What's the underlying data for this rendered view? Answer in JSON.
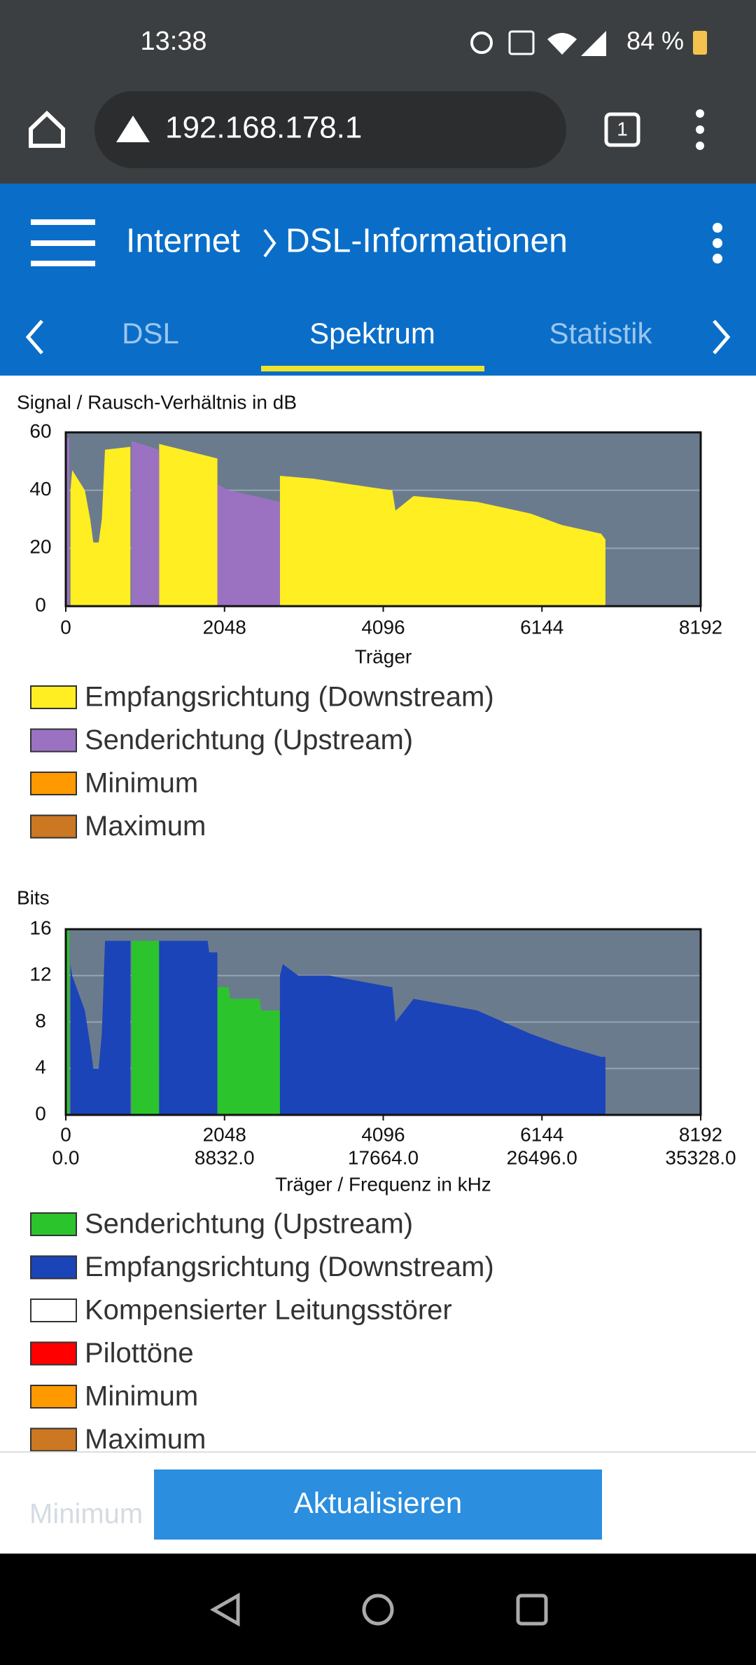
{
  "status_bar": {
    "time": "13:38",
    "battery": "84 %"
  },
  "browser": {
    "url": "192.168.178.1",
    "tab_count": "1"
  },
  "app_bar": {
    "section": "Internet",
    "page": "DSL-Informationen"
  },
  "tabs": [
    "DSL",
    "Spektrum",
    "Statistik"
  ],
  "chart_data": [
    {
      "type": "area",
      "y_label": "Signal / Rausch-Verhältnis in dB",
      "x_label": "Träger",
      "xlim": [
        0,
        8192
      ],
      "xticks": [
        0,
        2048,
        4096,
        6144,
        8192
      ],
      "ylim": [
        0,
        60
      ],
      "yticks": [
        0,
        20,
        40,
        60
      ],
      "grid": true,
      "series": [
        {
          "name": "Empfangsrichtung (Downstream)",
          "color": "#ffee22",
          "x": [
            60,
            82,
            246,
            315,
            355,
            424,
            465,
            506,
            834,
            null,
            1204,
            1956,
            null,
            2763,
            3200,
            3940,
            4213,
            4254,
            4487,
            5308,
            5992,
            6402,
            6908,
            6963
          ],
          "values": [
            40,
            47,
            40,
            30,
            22,
            22,
            30,
            54,
            55,
            null,
            56,
            51,
            null,
            45,
            44,
            41,
            40,
            33,
            38,
            36,
            32,
            28,
            25,
            23
          ]
        },
        {
          "name": "Senderichtung (Upstream)",
          "color": "#9b72c2",
          "x": [
            0,
            45,
            null,
            848,
            1204,
            null,
            1956,
            2100,
            2763
          ],
          "values": [
            58,
            58,
            null,
            57,
            54,
            null,
            42,
            40,
            36
          ]
        },
        {
          "name": "Minimum",
          "color": "#ff9900",
          "x": [],
          "values": []
        },
        {
          "name": "Maximum",
          "color": "#cc7722",
          "x": [],
          "values": []
        }
      ]
    },
    {
      "type": "area",
      "y_label": "Bits",
      "x_label": "Träger / Frequenz in kHz",
      "xlim": [
        0,
        8192
      ],
      "xticks": [
        0,
        2048,
        4096,
        6144,
        8192
      ],
      "x2lim": [
        0,
        35328
      ],
      "x2ticks": [
        {
          "value": 0,
          "label": "0.0"
        },
        {
          "value": 8832,
          "label": "8832.0"
        },
        {
          "value": 17664,
          "label": "17664.0"
        },
        {
          "value": 26496,
          "label": "26496.0"
        },
        {
          "value": 35328,
          "label": "35328.0"
        }
      ],
      "ylim": [
        0,
        16
      ],
      "yticks": [
        0,
        4,
        8,
        12,
        16
      ],
      "grid": true,
      "series": [
        {
          "name": "Senderichtung (Upstream)",
          "color": "#2cc42c",
          "x": [
            0,
            45,
            null,
            848,
            1204,
            null,
            1956,
            2100,
            2120,
            2500,
            2520,
            2763
          ],
          "values": [
            16,
            16,
            null,
            15,
            15,
            null,
            11,
            11,
            10,
            10,
            9,
            9
          ]
        },
        {
          "name": "Empfangsrichtung (Downstream)",
          "color": "#1a44b8",
          "x": [
            60,
            82,
            246,
            315,
            355,
            424,
            465,
            506,
            834,
            null,
            1204,
            1830,
            1850,
            1956,
            null,
            2763,
            2800,
            3000,
            3400,
            4213,
            4254,
            4487,
            5308,
            5992,
            6402,
            6908,
            6963
          ],
          "values": [
            13,
            12,
            9,
            6,
            4,
            4,
            7,
            15,
            15,
            null,
            15,
            15,
            14,
            14,
            null,
            12,
            13,
            12,
            12,
            11,
            8,
            10,
            9,
            7,
            6,
            5,
            5
          ]
        },
        {
          "name": "Kompensierter Leitungsstörer",
          "color": "#ffffff",
          "x": [],
          "values": []
        },
        {
          "name": "Pilottöne",
          "color": "#ff0000",
          "x": [],
          "values": []
        },
        {
          "name": "Minimum",
          "color": "#ff9900",
          "x": [],
          "values": []
        },
        {
          "name": "Maximum",
          "color": "#cc7722",
          "x": [],
          "values": []
        }
      ]
    }
  ],
  "hint": "Minimum",
  "button": "Aktualisieren"
}
